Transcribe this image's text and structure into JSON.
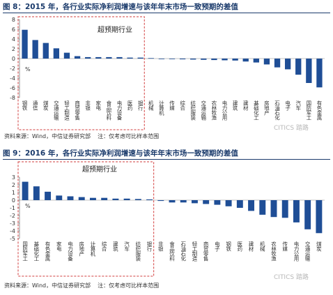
{
  "charts": [
    {
      "title": "图 8：2015 年，各行业实际净利润增速与该年年末市场一致预期的差值",
      "source_label": "资料来源：Wind，中信证券研究部",
      "note_label": "注：仅考虑可比样本范围",
      "watermark": "CITICS 踏路",
      "box_label": "超预期行业",
      "pct_label": "%"
    },
    {
      "title": "图 9：2016 年，各行业实际净利润增速与该年年末市场一致预期的差值",
      "source_label": "资料来源：Wind，中信证券研究部",
      "note_label": "注：仅考虑可比样本范围",
      "watermark": "CITICS 踏路",
      "box_label": "超预期行业",
      "pct_label": "%"
    }
  ],
  "chart_data": [
    {
      "type": "bar",
      "title": "图 8：2015 年，各行业实际净利润增速与该年年末市场一致预期的差值",
      "ylabel": "%",
      "ylim": [
        -8,
        8
      ],
      "yticks": [
        8,
        6,
        4,
        2,
        0,
        -2,
        -4,
        -6,
        -8
      ],
      "color": "#1f4e96",
      "categories": [
        "钢铁",
        "通信",
        "煤炭",
        "交通运输",
        "轻工制造",
        "商贸零售",
        "非银",
        "家电",
        "食品饮料",
        "电力设备",
        "医药",
        "银行",
        "机械",
        "计算机",
        "传媒",
        "综合",
        "纺织服装",
        "交通运输",
        "农林牧渔",
        "电力公用",
        "建筑",
        "建材",
        "基础化工",
        "房地产",
        "石油石化",
        "电子",
        "汽车",
        "国防军工",
        "有色金属"
      ],
      "values": [
        5.9,
        3.8,
        3.2,
        2.1,
        1.2,
        0.5,
        0.3,
        0.3,
        0.3,
        0.3,
        0.2,
        0.2,
        0.1,
        -0.05,
        -0.1,
        -0.15,
        -0.2,
        -0.25,
        -0.3,
        -0.35,
        -0.4,
        -0.6,
        -0.8,
        -1.2,
        -1.8,
        -2.2,
        -3.3,
        -5.0,
        -5.9
      ],
      "highlight_count": 12,
      "box_label": "超预期行业"
    },
    {
      "type": "bar",
      "title": "图 9：2016 年，各行业实际净利润增速与该年年末市场一致预期的差值",
      "ylabel": "%",
      "ylim": [
        -5,
        3
      ],
      "yticks": [
        3,
        2,
        1,
        0,
        -1,
        -2,
        -3,
        -4,
        -5
      ],
      "color": "#1f4e96",
      "categories": [
        "国防军工",
        "基础化工",
        "有色金属",
        "家电",
        "电力设备",
        "房地产",
        "计算机",
        "综合",
        "建筑",
        "汽车",
        "纺织服装",
        "银行",
        "非银",
        "食品饮料",
        "石油石化",
        "轻工制造",
        "商贸零售",
        "电子",
        "钢铁",
        "医药",
        "建材",
        "机械",
        "农林牧渔",
        "传媒",
        "电力公用",
        "交通运输",
        "煤炭"
      ],
      "values": [
        2.4,
        1.8,
        1.1,
        0.6,
        0.5,
        0.4,
        0.3,
        0.3,
        0.2,
        0.2,
        0.15,
        0.1,
        -0.1,
        -0.3,
        -0.3,
        -0.4,
        -0.5,
        -0.6,
        -0.8,
        -1.0,
        -1.4,
        -1.9,
        -2.2,
        -2.3,
        -2.9,
        -3.8,
        -4.3
      ],
      "highlight_count": 12,
      "box_label": "超预期行业"
    }
  ]
}
